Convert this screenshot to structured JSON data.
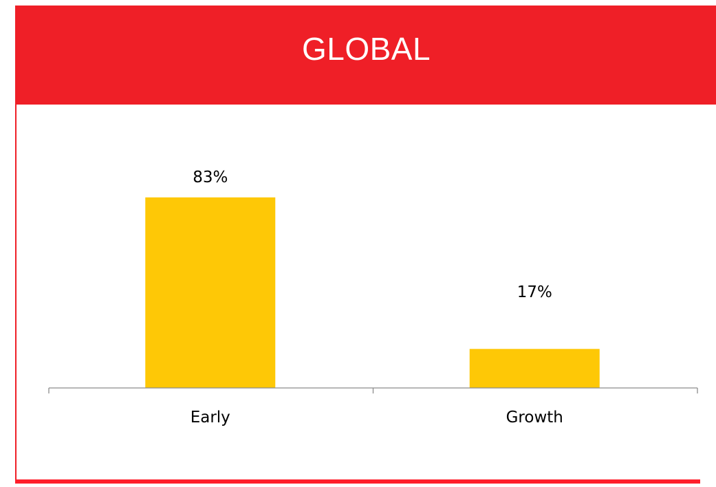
{
  "chart_data": {
    "type": "bar",
    "title": "GLOBAL",
    "categories": [
      "Early",
      "Growth"
    ],
    "values": [
      83,
      17
    ],
    "data_labels": [
      "83%",
      "17%"
    ],
    "xlabel": "",
    "ylabel": "",
    "ylim": [
      0,
      100
    ],
    "grid": false,
    "legend": "none",
    "colors": {
      "bar": "#fec806",
      "header": "#ef1f27",
      "title_text": "#ffffff"
    }
  }
}
